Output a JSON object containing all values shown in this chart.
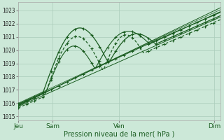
{
  "xlabel": "Pression niveau de la mer( hPa )",
  "bg_color": "#cce8d8",
  "grid_color": "#aaccbb",
  "line_color_dark": "#1a5c20",
  "line_color_mid": "#2a7a30",
  "yticks": [
    1015,
    1016,
    1017,
    1018,
    1019,
    1020,
    1021,
    1022,
    1023
  ],
  "xtick_labels": [
    "Jeu",
    "Sam",
    "Ven",
    "Dim"
  ],
  "xtick_positions": [
    0.0,
    0.17,
    0.5,
    0.97
  ],
  "ylim": [
    1014.7,
    1023.6
  ],
  "xlim": [
    0.0,
    1.0
  ]
}
